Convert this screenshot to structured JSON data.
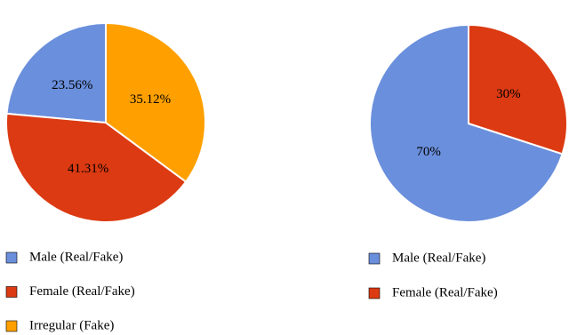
{
  "chart_data": [
    {
      "type": "pie",
      "categories": [
        "Male (Real/Fake)",
        "Female (Real/Fake)",
        "Irregular (Fake)"
      ],
      "values": [
        23.56,
        41.31,
        35.12
      ],
      "value_labels": [
        "23.56%",
        "41.31%",
        "35.12%"
      ],
      "colors": [
        "#6a8fdc",
        "#dc3a12",
        "#ffa000"
      ]
    },
    {
      "type": "pie",
      "categories": [
        "Male (Real/Fake)",
        "Female (Real/Fake)"
      ],
      "values": [
        70,
        30
      ],
      "value_labels": [
        "70%",
        "30%"
      ],
      "colors": [
        "#6a8fdc",
        "#dc3a12"
      ]
    }
  ]
}
